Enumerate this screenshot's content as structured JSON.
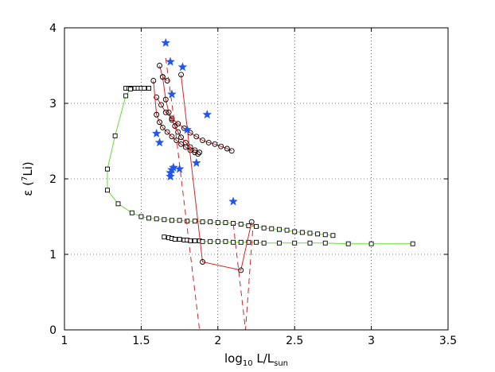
{
  "chart_data": {
    "type": "scatter",
    "title": "",
    "xlabel": {
      "base": "log",
      "sub1": "10",
      "mid": " L/L",
      "sub2": "sun"
    },
    "ylabel": {
      "pre": "ε (",
      "sup": "7",
      "post": "Li)"
    },
    "xlim": [
      1,
      3.5
    ],
    "ylim": [
      0,
      4
    ],
    "xticks": [
      1,
      1.5,
      2,
      2.5,
      3,
      3.5
    ],
    "yticks": [
      0,
      1,
      2,
      3,
      4
    ],
    "xtick_labels": [
      "1",
      "1.5",
      "2",
      "2.5",
      "3",
      "3.5"
    ],
    "ytick_labels": [
      "0",
      "1",
      "2",
      "3",
      "4"
    ],
    "grid": true,
    "colors": {
      "green": "#66dd33",
      "red": "#dd2222",
      "star": "#2255ee",
      "marker": "#000000"
    },
    "series": [
      {
        "name": "green-track-upper",
        "line": "#66dd33",
        "marker": "square",
        "x": [
          1.4,
          1.42,
          1.44,
          1.46,
          1.48,
          1.5,
          1.52,
          1.55,
          1.43,
          1.4,
          1.33,
          1.28,
          1.28,
          1.35,
          1.44,
          1.5,
          1.55,
          1.6,
          1.65,
          1.7,
          1.75,
          1.8,
          1.85,
          1.9,
          1.95,
          2.0,
          2.05,
          2.1,
          2.15,
          2.2,
          2.25,
          2.3,
          2.35,
          2.4,
          2.45,
          2.5,
          2.55,
          2.6,
          2.65,
          2.7,
          2.75
        ],
        "y": [
          3.2,
          3.2,
          3.2,
          3.2,
          3.2,
          3.2,
          3.2,
          3.2,
          3.19,
          3.1,
          2.57,
          2.13,
          1.85,
          1.67,
          1.55,
          1.5,
          1.48,
          1.47,
          1.46,
          1.45,
          1.45,
          1.44,
          1.44,
          1.43,
          1.43,
          1.42,
          1.42,
          1.41,
          1.4,
          1.38,
          1.37,
          1.35,
          1.34,
          1.33,
          1.32,
          1.3,
          1.29,
          1.28,
          1.27,
          1.26,
          1.25
        ]
      },
      {
        "name": "green-track-lower",
        "line": "#66dd33",
        "marker": "square",
        "x": [
          1.65,
          1.68,
          1.7,
          1.72,
          1.75,
          1.78,
          1.8,
          1.82,
          1.85,
          1.88,
          1.9,
          1.95,
          2.0,
          2.05,
          2.1,
          2.15,
          2.2,
          2.25,
          2.3,
          2.4,
          2.5,
          2.6,
          2.7,
          2.85,
          3.0,
          3.27
        ],
        "y": [
          1.23,
          1.22,
          1.21,
          1.2,
          1.2,
          1.19,
          1.19,
          1.18,
          1.18,
          1.18,
          1.17,
          1.17,
          1.17,
          1.17,
          1.16,
          1.16,
          1.16,
          1.16,
          1.15,
          1.15,
          1.15,
          1.15,
          1.15,
          1.14,
          1.14,
          1.14
        ]
      },
      {
        "name": "red-track-a",
        "line": "#dd2222",
        "marker": "circle",
        "x": [
          1.6,
          1.63,
          1.66,
          1.7,
          1.74,
          1.78,
          1.82,
          1.86,
          1.9,
          1.94,
          1.98,
          2.02,
          2.06,
          2.09
        ],
        "y": [
          3.08,
          2.98,
          2.88,
          2.8,
          2.73,
          2.67,
          2.61,
          2.56,
          2.51,
          2.48,
          2.46,
          2.43,
          2.4,
          2.37
        ]
      },
      {
        "name": "red-track-b",
        "line": "#dd2222",
        "marker": "circle",
        "x": [
          1.58,
          1.6,
          1.62,
          1.64,
          1.67,
          1.7,
          1.73,
          1.76,
          1.79,
          1.82,
          1.85,
          1.87
        ],
        "y": [
          3.3,
          2.85,
          2.75,
          2.68,
          2.62,
          2.56,
          2.51,
          2.46,
          2.42,
          2.38,
          2.35,
          2.33
        ]
      },
      {
        "name": "red-track-c",
        "line": "#dd2222",
        "marker": "circle",
        "x": [
          1.64,
          1.66,
          1.68,
          1.7,
          1.72,
          1.74,
          1.76,
          1.79,
          1.82,
          1.85,
          1.88
        ],
        "y": [
          3.35,
          3.05,
          2.88,
          2.78,
          2.7,
          2.62,
          2.55,
          2.48,
          2.42,
          2.38,
          2.35
        ]
      },
      {
        "name": "red-segment-1",
        "line": "#dd2222",
        "marker": "circle",
        "x": [
          1.76,
          1.9,
          2.15,
          2.22
        ],
        "y": [
          3.38,
          0.9,
          0.79,
          1.43
        ]
      },
      {
        "name": "red-segment-2",
        "line": "#dd2222",
        "marker": "circle",
        "x": [
          1.62,
          1.64,
          1.67
        ],
        "y": [
          3.5,
          3.35,
          3.3
        ]
      },
      {
        "name": "red-dashed-1",
        "line": "#dd2222",
        "dashed": true,
        "marker": "none",
        "x": [
          1.66,
          1.72,
          1.88
        ],
        "y": [
          3.6,
          2.7,
          0.0
        ]
      },
      {
        "name": "red-dashed-2",
        "line": "#dd2222",
        "dashed": true,
        "marker": "none",
        "x": [
          2.1,
          2.18,
          2.23
        ],
        "y": [
          1.4,
          0.0,
          1.4
        ]
      },
      {
        "name": "blue-stars",
        "line": "none",
        "marker": "star",
        "x": [
          1.66,
          1.69,
          1.77,
          1.7,
          1.93,
          1.6,
          1.62,
          1.69,
          1.75,
          1.71,
          1.8,
          1.86,
          1.69,
          1.7,
          2.1
        ],
        "y": [
          3.8,
          3.55,
          3.48,
          3.12,
          2.85,
          2.6,
          2.48,
          2.08,
          2.13,
          2.15,
          2.65,
          2.21,
          2.03,
          2.12,
          1.7
        ]
      }
    ]
  }
}
